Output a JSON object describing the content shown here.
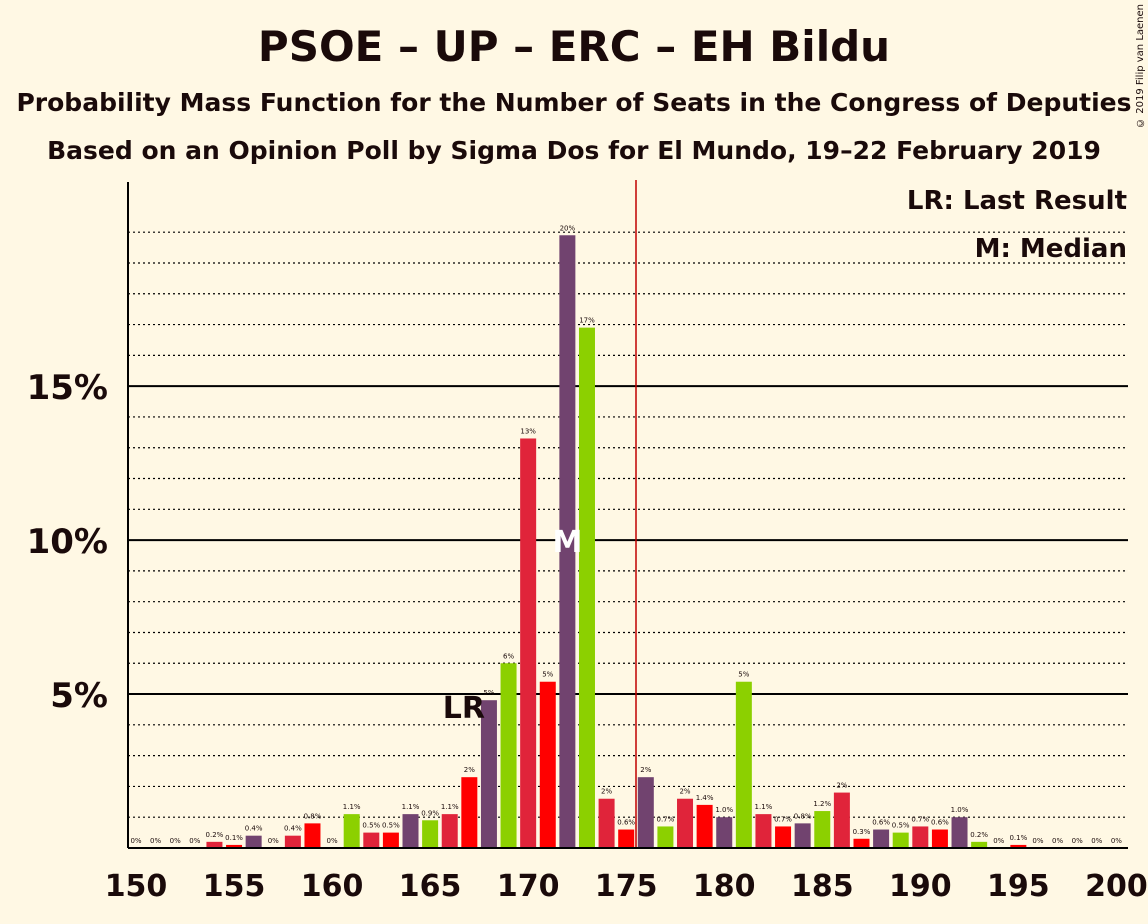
{
  "title": "PSOE – UP – ERC – EH Bildu",
  "subtitle1": "Probability Mass Function for the Number of Seats in the Congress of Deputies",
  "subtitle2": "Based on an Opinion Poll by Sigma Dos for El Mundo, 19–22 February 2019",
  "copyright": "© 2019 Filip van Laenen",
  "colors": {
    "background": "#FFF8E4",
    "psoe": "#E0243A",
    "red": "#FF0000",
    "up": "#71436F",
    "erc": "#8CD000",
    "majority_line": "#C00000"
  },
  "chart_data": {
    "type": "bar",
    "x": [
      150,
      151,
      152,
      153,
      154,
      155,
      156,
      157,
      158,
      159,
      160,
      161,
      162,
      163,
      164,
      165,
      166,
      167,
      168,
      169,
      170,
      171,
      172,
      173,
      174,
      175,
      176,
      177,
      178,
      179,
      180,
      181,
      182,
      183,
      184,
      185,
      186,
      187,
      188,
      189,
      190,
      191,
      192,
      193,
      194,
      195,
      196,
      197,
      198,
      199,
      200
    ],
    "values": [
      0,
      0,
      0,
      0,
      0.2,
      0.1,
      0.4,
      0,
      0.4,
      0.8,
      0,
      1.1,
      0.5,
      0.5,
      1.1,
      0.9,
      1.1,
      2.3,
      4.8,
      6.0,
      13.3,
      5.4,
      19.9,
      16.9,
      1.6,
      0.6,
      2.3,
      0.7,
      1.6,
      1.4,
      1.0,
      5.4,
      1.1,
      0.7,
      0.8,
      1.2,
      1.8,
      0.3,
      0.6,
      0.5,
      0.7,
      0.6,
      1.0,
      0.2,
      0,
      0.1,
      0,
      0,
      0,
      0,
      0
    ],
    "labels": [
      "0%",
      "0%",
      "0%",
      "0%",
      "0.2%",
      "0.1%",
      "0.4%",
      "0%",
      "0.4%",
      "0.8%",
      "0%",
      "1.1%",
      "0.5%",
      "0.5%",
      "1.1%",
      "0.9%",
      "1.1%",
      "2%",
      "5%",
      "6%",
      "13%",
      "5%",
      "20%",
      "17%",
      "2%",
      "0.6%",
      "2%",
      "0.7%",
      "2%",
      "1.4%",
      "1.0%",
      "5%",
      "1.1%",
      "0.7%",
      "0.8%",
      "1.2%",
      "2%",
      "0.3%",
      "0.6%",
      "0.5%",
      "0.7%",
      "0.6%",
      "1.0%",
      "0.2%",
      "0%",
      "0.1%",
      "0%",
      "0%",
      "0%",
      "0%",
      "0%"
    ],
    "bar_colors": [
      "#E0243A",
      "#FF0000",
      "#71436F",
      "#8CD000"
    ],
    "xticks": [
      150,
      155,
      160,
      165,
      170,
      175,
      180,
      185,
      190,
      195,
      200
    ],
    "yticks": [
      {
        "value": 5,
        "label": "5%"
      },
      {
        "value": 10,
        "label": "10%"
      },
      {
        "value": 15,
        "label": "15%"
      }
    ],
    "ylim": [
      0,
      21.5
    ],
    "minor_grid_step": 1,
    "majority_line": 176,
    "last_result": {
      "seat": 168,
      "label": "LR"
    },
    "median": {
      "seat": 172,
      "label": "M"
    },
    "legend": [
      "LR: Last Result",
      "M: Median"
    ],
    "legend_placement": "top-right"
  }
}
